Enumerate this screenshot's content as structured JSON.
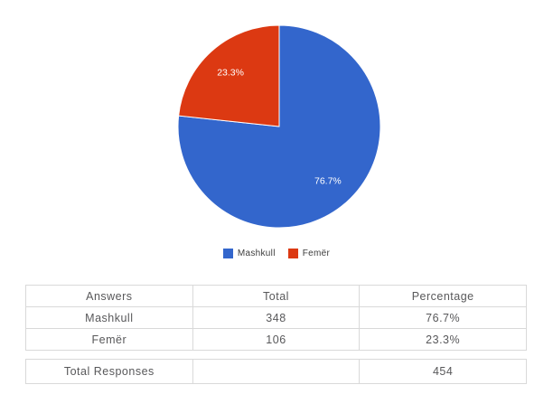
{
  "page": {
    "background": "#ffffff"
  },
  "chart_data": {
    "type": "pie",
    "title": "",
    "categories": [
      "Mashkull",
      "Femër"
    ],
    "values": [
      76.7,
      23.3
    ],
    "counts": [
      348,
      106
    ],
    "slices": [
      {
        "label": "Mashkull",
        "value": 76.7,
        "pct_label": "76.7%",
        "count": 348,
        "color": "#3366cc"
      },
      {
        "label": "Femër",
        "value": 23.3,
        "pct_label": "23.3%",
        "count": 106,
        "color": "#dc3912"
      }
    ],
    "start_angle_deg": 0,
    "direction": "clockwise",
    "slice_border_color": "#ffffff",
    "label_color": "#ffffff",
    "legend_position": "bottom"
  },
  "legend": {
    "items": [
      {
        "label": "Mashkull",
        "color": "#3366cc"
      },
      {
        "label": "Femër",
        "color": "#dc3912"
      }
    ]
  },
  "table": {
    "headers": [
      "Answers",
      "Total",
      "Percentage"
    ],
    "rows": [
      {
        "answer": "Mashkull",
        "total": "348",
        "percentage": "76.7%"
      },
      {
        "answer": "Femër",
        "total": "106",
        "percentage": "23.3%"
      }
    ]
  },
  "totals": {
    "label": "Total Responses",
    "total": "",
    "value": "454"
  }
}
